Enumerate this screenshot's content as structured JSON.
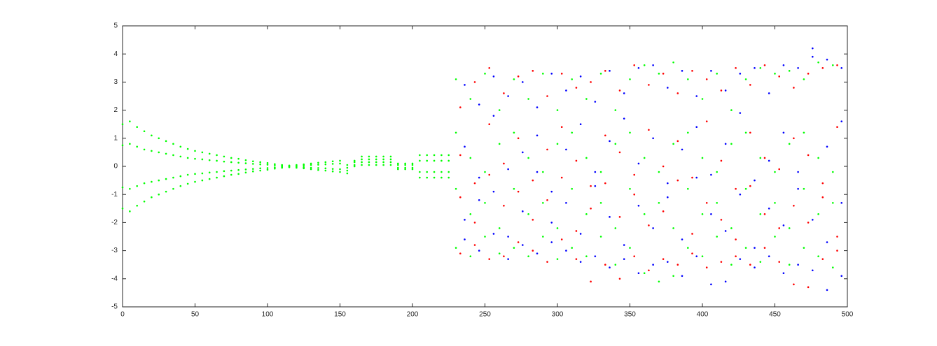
{
  "chart_data": {
    "type": "scatter",
    "xlim": [
      0,
      500
    ],
    "ylim": [
      -5,
      5
    ],
    "xticks": [
      0,
      50,
      100,
      150,
      200,
      250,
      300,
      350,
      400,
      450,
      500
    ],
    "yticks": [
      -5,
      -4,
      -3,
      -2,
      -1,
      0,
      1,
      2,
      3,
      4,
      5
    ],
    "grid": false,
    "series": [
      {
        "color": "#00ff00",
        "x": [
          0,
          0,
          0,
          0,
          5,
          5,
          5,
          5,
          10,
          10,
          10,
          10,
          15,
          15,
          15,
          15,
          20,
          20,
          20,
          20,
          25,
          25,
          25,
          25,
          30,
          30,
          30,
          30,
          35,
          35,
          35,
          35,
          40,
          40,
          40,
          40,
          45,
          45,
          45,
          45,
          50,
          50,
          50,
          50,
          55,
          55,
          55,
          55,
          60,
          60,
          60,
          60,
          65,
          65,
          65,
          65,
          70,
          70,
          70,
          70,
          75,
          75,
          75,
          75,
          80,
          80,
          80,
          80,
          85,
          85,
          85,
          85,
          90,
          90,
          90,
          90,
          95,
          95,
          95,
          95,
          100,
          100,
          100,
          100,
          105,
          105,
          105,
          105,
          110,
          110,
          110,
          110,
          115,
          115,
          115,
          115,
          120,
          120,
          120,
          120,
          125,
          125,
          125,
          125,
          130,
          130,
          130,
          130,
          135,
          135,
          135,
          135,
          140,
          140,
          140,
          140,
          145,
          145,
          145,
          145,
          150,
          150,
          150,
          150,
          155,
          155,
          155,
          155,
          160,
          160,
          160,
          160,
          165,
          165,
          165,
          165,
          170,
          170,
          170,
          170,
          175,
          175,
          175,
          175,
          180,
          180,
          180,
          180,
          185,
          185,
          185,
          185,
          190,
          190,
          190,
          190,
          195,
          195,
          195,
          195,
          200,
          200,
          200,
          200,
          205,
          205,
          205,
          205,
          210,
          210,
          210,
          210,
          215,
          215,
          215,
          215,
          220,
          220,
          220,
          220,
          225,
          225,
          225,
          225,
          230,
          230,
          230,
          230,
          240,
          240,
          240,
          240,
          250,
          250,
          250,
          250,
          260,
          260,
          260,
          260,
          270,
          270,
          270,
          270,
          280,
          280,
          280,
          280,
          290,
          290,
          290,
          290,
          300,
          300,
          300,
          300,
          310,
          310,
          310,
          310,
          320,
          320,
          320,
          320,
          330,
          330,
          330,
          330,
          340,
          340,
          340,
          340,
          350,
          350,
          350,
          350,
          360,
          360,
          360,
          360,
          370,
          370,
          370,
          370,
          380,
          380,
          380,
          380,
          390,
          390,
          390,
          390,
          400,
          400,
          400,
          400,
          410,
          410,
          410,
          410,
          420,
          420,
          420,
          420,
          430,
          430,
          430,
          430,
          440,
          440,
          440,
          440,
          450,
          450,
          450,
          450,
          460,
          460,
          460,
          460,
          470,
          470,
          470,
          470,
          480,
          480,
          480,
          480,
          490,
          490,
          490,
          490
        ],
        "values": [
          1.5,
          0.75,
          -0.75,
          -1.5,
          1.6,
          0.8,
          -0.8,
          -1.6,
          1.4,
          0.7,
          -0.7,
          -1.4,
          1.25,
          0.6,
          -0.6,
          -1.25,
          1.1,
          0.55,
          -0.55,
          -1.1,
          1.0,
          0.5,
          -0.5,
          -1.0,
          0.9,
          0.45,
          -0.45,
          -0.9,
          0.8,
          0.4,
          -0.4,
          -0.8,
          0.7,
          0.35,
          -0.35,
          -0.7,
          0.62,
          0.3,
          -0.3,
          -0.62,
          0.55,
          0.27,
          -0.27,
          -0.55,
          0.5,
          0.25,
          -0.25,
          -0.5,
          0.45,
          0.22,
          -0.22,
          -0.45,
          0.4,
          0.2,
          -0.2,
          -0.4,
          0.35,
          0.17,
          -0.17,
          -0.35,
          0.3,
          0.15,
          -0.15,
          -0.3,
          0.27,
          0.13,
          -0.13,
          -0.27,
          0.22,
          0.11,
          -0.11,
          -0.22,
          0.18,
          0.09,
          -0.09,
          -0.18,
          0.15,
          0.07,
          -0.07,
          -0.15,
          0.12,
          0.06,
          -0.06,
          -0.12,
          0.08,
          0.04,
          -0.04,
          -0.08,
          0.05,
          0.02,
          -0.02,
          -0.05,
          0.03,
          0.01,
          -0.01,
          -0.03,
          0.05,
          0.02,
          -0.02,
          -0.05,
          0.07,
          0.03,
          -0.03,
          -0.07,
          0.1,
          0.05,
          -0.05,
          -0.1,
          0.13,
          0.06,
          -0.06,
          -0.13,
          0.15,
          0.07,
          -0.07,
          -0.15,
          0.18,
          0.09,
          -0.09,
          -0.18,
          0.2,
          0.1,
          -0.1,
          -0.2,
          0.05,
          -0.05,
          -0.15,
          -0.25,
          0.2,
          0.15,
          0.05,
          0,
          0.35,
          0.25,
          0.15,
          0.05,
          0.35,
          0.25,
          0.15,
          0.05,
          0.35,
          0.25,
          0.15,
          0.05,
          0.35,
          0.25,
          0.15,
          0.05,
          0.35,
          0.25,
          0.15,
          0.05,
          0.1,
          0.05,
          -0.05,
          -0.1,
          0.1,
          0.05,
          -0.05,
          -0.1,
          0.1,
          0.05,
          -0.05,
          -0.1,
          0.4,
          0.2,
          -0.2,
          -0.4,
          0.4,
          0.2,
          -0.2,
          -0.4,
          0.4,
          0.2,
          -0.2,
          -0.4,
          0.4,
          0.2,
          -0.2,
          -0.4,
          0.4,
          0.2,
          -0.2,
          -0.4,
          3.1,
          1.2,
          -0.8,
          -2.9,
          2.4,
          0.3,
          -1.7,
          -3.2,
          3.3,
          -0.2,
          -1.3,
          -2.5,
          2.0,
          0.8,
          -2.2,
          -3.1,
          3.1,
          1.2,
          -0.8,
          -2.9,
          2.4,
          0.3,
          -1.7,
          -3.2,
          3.3,
          -0.2,
          -1.3,
          -2.5,
          2.0,
          0.8,
          -2.2,
          -3.3,
          3.1,
          1.2,
          -0.8,
          -2.9,
          2.4,
          0.3,
          -1.7,
          -3.2,
          3.3,
          -0.2,
          -1.3,
          -2.5,
          2.0,
          0.8,
          -2.2,
          -3.5,
          3.1,
          1.2,
          -0.8,
          -2.9,
          3.6,
          0.3,
          -1.7,
          -3.8,
          3.3,
          -0.2,
          -1.3,
          -4.1,
          3.7,
          0.8,
          -2.2,
          -3.9,
          3.1,
          1.2,
          -0.8,
          -2.9,
          2.4,
          0.3,
          -1.7,
          -3.2,
          3.3,
          -0.2,
          -1.3,
          -2.5,
          2.0,
          0.8,
          -2.2,
          -3.5,
          3.1,
          1.2,
          -0.8,
          -2.9,
          3.5,
          0.3,
          -1.7,
          -3.4,
          3.3,
          -0.2,
          -1.3,
          -2.5,
          3.4,
          0.8,
          -2.2,
          -3.5,
          3.1,
          1.2,
          -0.8,
          -2.9,
          3.7,
          0.3,
          -1.7,
          -3.2,
          3.6,
          -0.2,
          -1.3,
          -3.6
        ]
      },
      {
        "color": "#ff0000",
        "x": [
          233,
          233,
          233,
          233,
          243,
          243,
          243,
          243,
          253,
          253,
          253,
          253,
          263,
          263,
          263,
          263,
          273,
          273,
          273,
          273,
          283,
          283,
          283,
          283,
          293,
          293,
          293,
          293,
          303,
          303,
          303,
          303,
          313,
          313,
          313,
          313,
          323,
          323,
          323,
          323,
          333,
          333,
          333,
          333,
          343,
          343,
          343,
          343,
          353,
          353,
          353,
          353,
          363,
          363,
          363,
          363,
          373,
          373,
          373,
          373,
          383,
          383,
          383,
          383,
          393,
          393,
          393,
          393,
          403,
          403,
          403,
          403,
          413,
          413,
          413,
          413,
          423,
          423,
          423,
          423,
          433,
          433,
          433,
          433,
          443,
          443,
          443,
          443,
          453,
          453,
          453,
          453,
          463,
          463,
          463,
          463,
          473,
          473,
          473,
          473,
          483,
          483,
          483,
          483,
          493,
          493,
          493,
          493
        ],
        "values": [
          2.1,
          0.4,
          -1.1,
          -3.1,
          3.0,
          -0.6,
          -2.0,
          -2.8,
          3.5,
          1.5,
          -0.3,
          -3.3,
          2.6,
          0.1,
          -1.4,
          -3.2,
          3.2,
          1.0,
          -0.9,
          -2.7,
          3.4,
          -0.5,
          -1.9,
          -3.0,
          2.5,
          0.6,
          -1.2,
          -3.4,
          3.3,
          1.4,
          -0.4,
          -2.6,
          2.8,
          0.2,
          -2.3,
          -3.3,
          3.0,
          -0.7,
          -1.5,
          -4.1,
          3.4,
          1.1,
          -0.6,
          -3.5,
          2.7,
          0.5,
          -1.8,
          -4.0,
          3.6,
          -0.3,
          -1.0,
          -3.2,
          2.9,
          1.3,
          -2.1,
          -3.7,
          3.3,
          0.0,
          -1.6,
          -3.3,
          2.6,
          0.9,
          -0.5,
          -3.5,
          3.4,
          -0.4,
          -2.4,
          -3.1,
          3.1,
          1.6,
          -1.3,
          -3.6,
          2.7,
          0.2,
          -1.9,
          -3.4,
          3.5,
          -0.8,
          -2.6,
          -3.2,
          2.9,
          1.2,
          -0.7,
          -3.5,
          3.6,
          0.3,
          -1.7,
          -2.9,
          3.2,
          -0.1,
          -2.2,
          -3.4,
          2.8,
          1.0,
          -1.4,
          -4.2,
          3.3,
          0.4,
          -2.0,
          -4.3,
          3.5,
          -0.6,
          -1.1,
          -3.3,
          3.6,
          1.4,
          -2.5,
          -3.0
        ]
      },
      {
        "color": "#0000ff",
        "x": [
          236,
          236,
          236,
          236,
          246,
          246,
          246,
          246,
          256,
          256,
          256,
          256,
          266,
          266,
          266,
          266,
          276,
          276,
          276,
          276,
          286,
          286,
          286,
          286,
          296,
          296,
          296,
          296,
          306,
          306,
          306,
          306,
          316,
          316,
          316,
          316,
          326,
          326,
          326,
          326,
          336,
          336,
          336,
          336,
          346,
          346,
          346,
          346,
          356,
          356,
          356,
          356,
          366,
          366,
          366,
          366,
          376,
          376,
          376,
          376,
          386,
          386,
          386,
          386,
          396,
          396,
          396,
          396,
          406,
          406,
          406,
          406,
          416,
          416,
          416,
          416,
          426,
          426,
          426,
          426,
          436,
          436,
          436,
          436,
          446,
          446,
          446,
          446,
          456,
          456,
          456,
          456,
          466,
          466,
          466,
          466,
          476,
          476,
          476,
          476,
          486,
          486,
          486,
          486,
          496,
          496,
          496,
          496
        ],
        "values": [
          2.9,
          0.7,
          -1.9,
          -2.6,
          2.2,
          -0.4,
          -1.2,
          -3.0,
          3.2,
          1.8,
          -0.9,
          -2.4,
          2.5,
          -0.1,
          -2.5,
          -3.3,
          3.0,
          0.5,
          -1.6,
          -2.8,
          2.1,
          1.1,
          -0.2,
          -3.1,
          3.3,
          -0.9,
          -2.0,
          -2.7,
          2.7,
          0.6,
          -1.3,
          -3.0,
          3.2,
          1.5,
          -2.4,
          -3.4,
          2.3,
          -0.2,
          -0.7,
          -3.2,
          3.4,
          0.9,
          -1.8,
          -3.6,
          2.6,
          1.7,
          -2.8,
          -3.3,
          3.5,
          0.1,
          -1.4,
          -3.8,
          3.6,
          1.0,
          -2.2,
          -3.5,
          2.8,
          -0.6,
          -1.1,
          -3.4,
          3.4,
          0.6,
          -2.6,
          -3.9,
          2.5,
          1.4,
          -0.4,
          -3.2,
          3.4,
          -0.3,
          -1.7,
          -4.2,
          2.7,
          0.8,
          -2.3,
          -4.1,
          3.3,
          1.9,
          -1.0,
          -3.3,
          3.5,
          -0.5,
          -2.9,
          -3.6,
          2.6,
          0.2,
          -1.5,
          -3.2,
          3.6,
          1.2,
          -2.1,
          -3.8,
          3.5,
          -0.2,
          -0.8,
          -3.5,
          4.2,
          3.9,
          -1.9,
          -3.7,
          3.8,
          0.7,
          -2.7,
          -4.4,
          3.5,
          1.6,
          -1.3,
          -3.9
        ]
      }
    ]
  }
}
